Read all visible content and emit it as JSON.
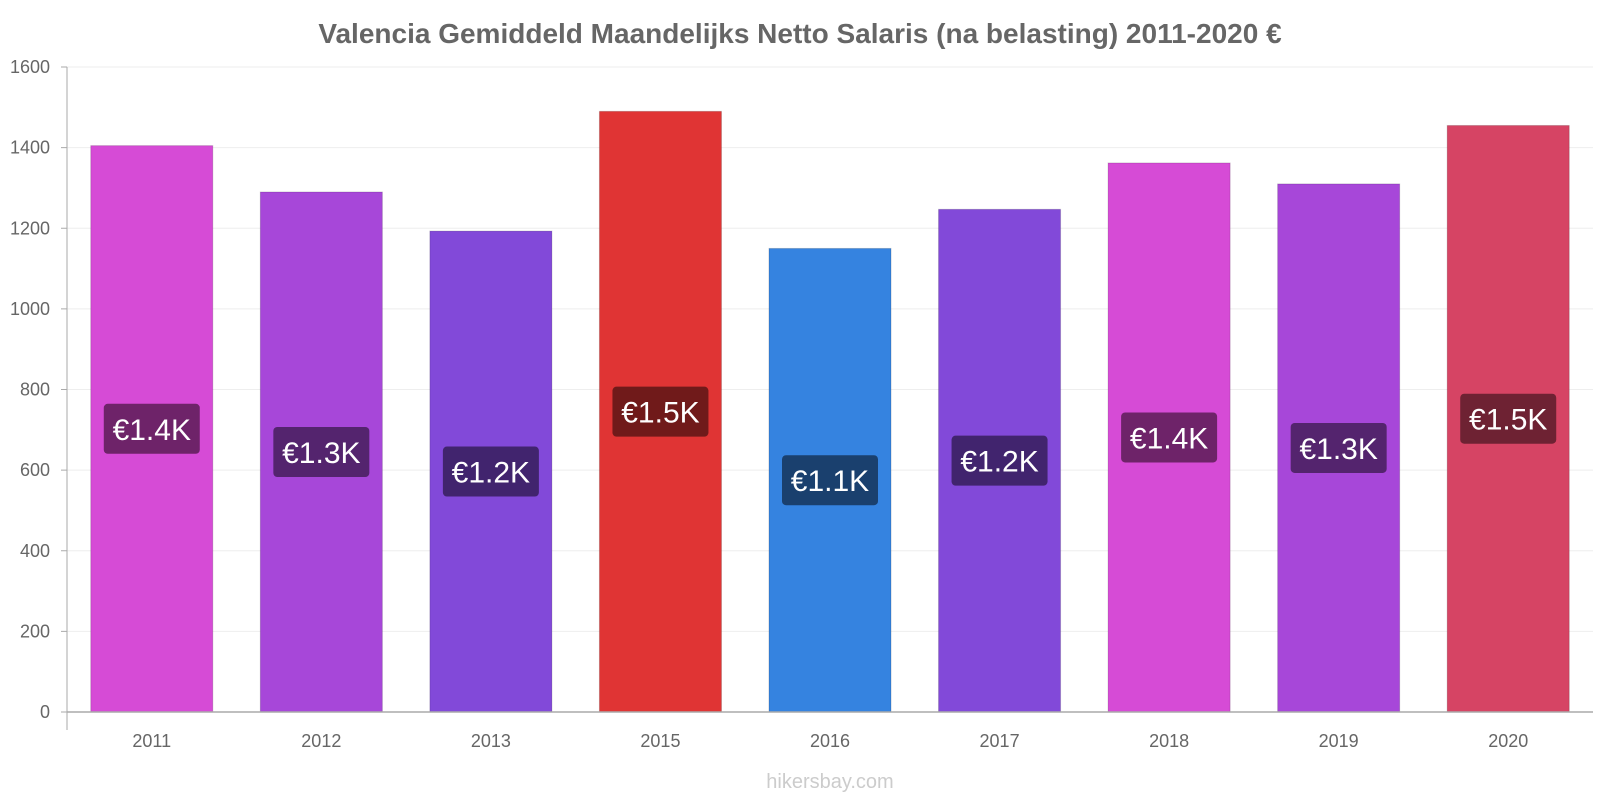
{
  "chart_data": {
    "type": "bar",
    "title": "Valencia Gemiddeld Maandelijks Netto Salaris (na belasting) 2011-2020 €",
    "categories": [
      "2011",
      "2012",
      "2013",
      "2015",
      "2016",
      "2017",
      "2018",
      "2019",
      "2020"
    ],
    "values": [
      1405,
      1290,
      1193,
      1490,
      1150,
      1247,
      1362,
      1310,
      1455
    ],
    "value_labels": [
      "€1.4K",
      "€1.3K",
      "€1.2K",
      "€1.5K",
      "€1.1K",
      "€1.2K",
      "€1.4K",
      "€1.3K",
      "€1.5K"
    ],
    "bar_colors": [
      "#d64bd6",
      "#a747d9",
      "#8249d9",
      "#e03434",
      "#3583e0",
      "#8249d9",
      "#d64bd6",
      "#a747d9",
      "#d64464"
    ],
    "label_bg_colors": [
      "#6e2369",
      "#54246e",
      "#41246e",
      "#701a1a",
      "#1a406e",
      "#41246e",
      "#6e2369",
      "#54246e",
      "#6e2233"
    ],
    "ylim": [
      0,
      1600
    ],
    "yticks": [
      0,
      200,
      400,
      600,
      800,
      1000,
      1200,
      1400,
      1600
    ],
    "grid": true,
    "xlabel": "",
    "ylabel": ""
  },
  "watermark": "hikersbay.com"
}
